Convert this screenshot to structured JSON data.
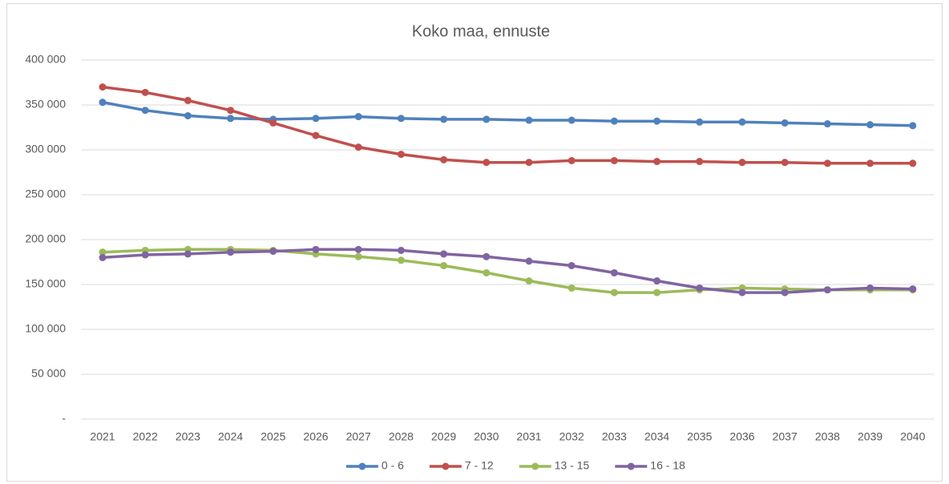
{
  "chart_data": {
    "type": "line",
    "title": "Koko maa, ennuste",
    "categories": [
      "2021",
      "2022",
      "2023",
      "2024",
      "2025",
      "2026",
      "2027",
      "2028",
      "2029",
      "2030",
      "2031",
      "2032",
      "2033",
      "2034",
      "2035",
      "2036",
      "2037",
      "2038",
      "2039",
      "2040"
    ],
    "series": [
      {
        "name": "0 - 6",
        "color": "#4f81bd",
        "values": [
          353000,
          344000,
          338000,
          335000,
          334000,
          335000,
          337000,
          335000,
          334000,
          334000,
          333000,
          333000,
          332000,
          332000,
          331000,
          331000,
          330000,
          329000,
          328000,
          327000
        ]
      },
      {
        "name": "7 - 12",
        "color": "#c0504d",
        "values": [
          370000,
          364000,
          355000,
          344000,
          330000,
          316000,
          303000,
          295000,
          289000,
          286000,
          286000,
          288000,
          288000,
          287000,
          287000,
          286000,
          286000,
          285000,
          285000,
          285000
        ]
      },
      {
        "name": "13 - 15",
        "color": "#9bbb59",
        "values": [
          186000,
          188000,
          189000,
          189000,
          188000,
          184000,
          181000,
          177000,
          171000,
          163000,
          154000,
          146000,
          141000,
          141000,
          144000,
          146000,
          145000,
          144000,
          144000,
          144000
        ]
      },
      {
        "name": "16 - 18",
        "color": "#8064a2",
        "values": [
          180000,
          183000,
          184000,
          186000,
          187000,
          189000,
          189000,
          188000,
          184000,
          181000,
          176000,
          171000,
          163000,
          154000,
          146000,
          141000,
          141000,
          144000,
          146000,
          145000
        ]
      }
    ],
    "ylim": [
      0,
      400000
    ],
    "yticks": [
      {
        "value": 0,
        "label": "-"
      },
      {
        "value": 50000,
        "label": "50 000"
      },
      {
        "value": 100000,
        "label": "100 000"
      },
      {
        "value": 150000,
        "label": "150 000"
      },
      {
        "value": 200000,
        "label": "200 000"
      },
      {
        "value": 250000,
        "label": "250 000"
      },
      {
        "value": 300000,
        "label": "300 000"
      },
      {
        "value": 350000,
        "label": "350 000"
      },
      {
        "value": 400000,
        "label": "400 000"
      }
    ],
    "grid": true,
    "legend": "bottom"
  }
}
